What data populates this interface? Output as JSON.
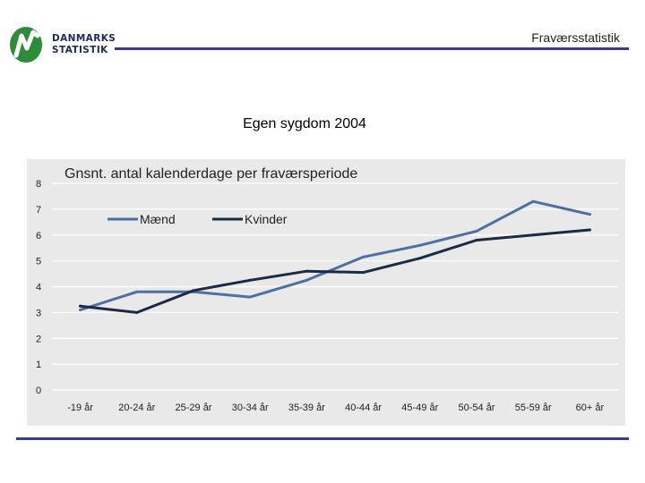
{
  "header": {
    "logo_lines": [
      "DANMARKS",
      "STATISTIK"
    ],
    "title": "Fraværsstatistik",
    "brand_green": "#2e8b3a",
    "rule_color": "#3a3d8c"
  },
  "slide": {
    "title": "Egen sygdom 2004"
  },
  "chart_data": {
    "type": "line",
    "title": "Gnsnt. antal kalenderdage per fraværsperiode",
    "categories": [
      "-19 år",
      "20-24 år",
      "25-29 år",
      "30-34 år",
      "35-39 år",
      "40-44 år",
      "45-49 år",
      "50-54 år",
      "55-59 år",
      "60+ år"
    ],
    "series": [
      {
        "name": "Mænd",
        "color": "#4e6fa3",
        "values": [
          3.1,
          3.8,
          3.8,
          3.6,
          4.25,
          5.15,
          5.6,
          6.15,
          7.3,
          6.8
        ]
      },
      {
        "name": "Kvinder",
        "color": "#1c2a45",
        "values": [
          3.25,
          3.0,
          3.85,
          4.25,
          4.6,
          4.55,
          5.1,
          5.8,
          6.0,
          6.2
        ]
      }
    ],
    "ylim": [
      0,
      8
    ],
    "yticks": [
      "0",
      "1",
      "2",
      "3",
      "4",
      "5",
      "6",
      "7",
      "8"
    ],
    "xlabel": "",
    "ylabel": "",
    "grid": true,
    "legend_position": "top-left"
  }
}
